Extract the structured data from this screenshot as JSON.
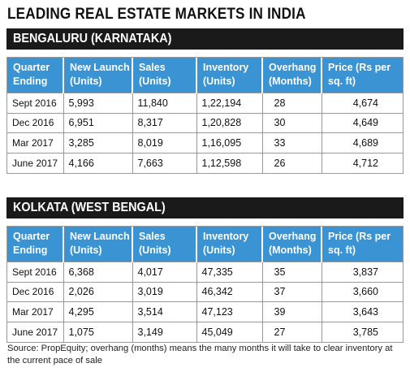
{
  "title": "LEADING REAL ESTATE MARKETS IN INDIA",
  "headers": [
    "Quarter Ending",
    "New Launch (Units)",
    "Sales (Units)",
    "Inventory (Units)",
    "Overhang (Months)",
    "Price (Rs per sq. ft)"
  ],
  "sections": [
    {
      "name": "BENGALURU (KARNATAKA)",
      "rows": [
        [
          "Sept 2016",
          "5,993",
          "11,840",
          "1,22,194",
          "28",
          "4,674"
        ],
        [
          "Dec 2016",
          "6,951",
          "8,317",
          "1,20,828",
          "30",
          "4,649"
        ],
        [
          "Mar 2017",
          "3,285",
          "8,019",
          "1,16,095",
          "33",
          "4,689"
        ],
        [
          "June 2017",
          "4,166",
          "7,663",
          "1,12,598",
          "26",
          "4,712"
        ]
      ]
    },
    {
      "name": "KOLKATA (WEST BENGAL)",
      "rows": [
        [
          "Sept 2016",
          "6,368",
          "4,017",
          "47,335",
          "35",
          "3,837"
        ],
        [
          "Dec 2016",
          "2,026",
          "3,019",
          "46,342",
          "37",
          "3,660"
        ],
        [
          "Mar 2017",
          "4,295",
          "3,514",
          "47,123",
          "39",
          "3,643"
        ],
        [
          "June 2017",
          "1,075",
          "3,149",
          "45,049",
          "27",
          "3,785"
        ]
      ]
    }
  ],
  "footer": "Source: PropEquity; overhang (months) means the many months it will take to clear inventory at the current pace of sale",
  "colors": {
    "header_bg": "#3a93d3",
    "section_bar": "#1a1a1a",
    "border": "#9a9a9a"
  }
}
